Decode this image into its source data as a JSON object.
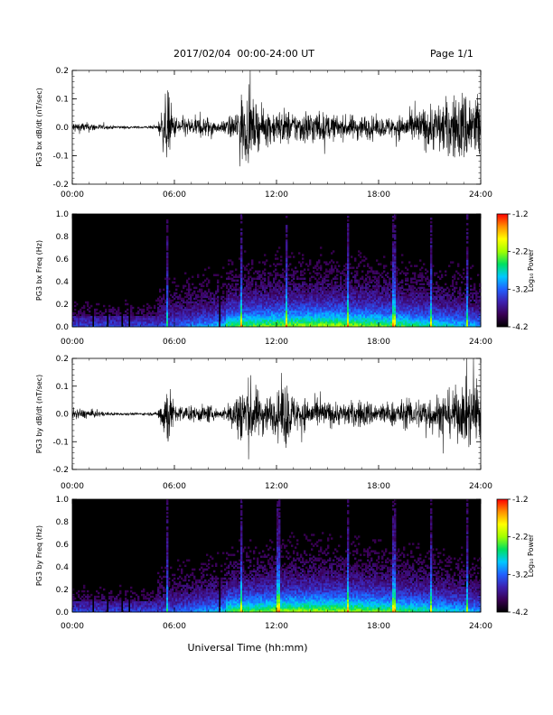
{
  "header": {
    "date_range": "2017/02/04  00:00-24:00 UT",
    "page_label": "Page 1/1"
  },
  "xaxis": {
    "label": "Universal Time (hh:mm)",
    "ticks": [
      "00:00",
      "06:00",
      "12:00",
      "18:00",
      "24:00"
    ],
    "range_hours": [
      0,
      24
    ]
  },
  "colors": {
    "background": "#ffffff",
    "trace": "#000000",
    "spectrogram_floor": "#000000",
    "colormap": [
      "#000000",
      "#3a0055",
      "#3d21b0",
      "#2060ff",
      "#00c8ff",
      "#00e060",
      "#a0ff00",
      "#ffff00",
      "#ff9000",
      "#ff0000"
    ]
  },
  "chart_data": [
    {
      "type": "line",
      "panel": "bx-timeseries",
      "ylabel": "PG3 bx dB/dt (nT/sec)",
      "ylim": [
        -0.2,
        0.2
      ],
      "yticks": [
        "-0.2",
        "-0.1",
        "0.0",
        "0.1",
        "0.2"
      ],
      "x_hours": [
        0,
        1,
        2,
        3,
        4,
        5,
        5.6,
        6,
        7,
        8,
        8.7,
        9,
        9.5,
        10,
        10.5,
        11,
        12,
        12.5,
        13,
        14,
        15,
        16,
        17,
        18,
        19,
        20,
        21,
        22,
        23,
        23.5,
        24
      ],
      "envelope": [
        0.03,
        0.025,
        0.01,
        0.008,
        0.006,
        0.01,
        0.2,
        0.06,
        0.05,
        0.06,
        0.02,
        0.05,
        0.06,
        0.2,
        0.15,
        0.1,
        0.09,
        0.1,
        0.08,
        0.1,
        0.07,
        0.06,
        0.07,
        0.05,
        0.06,
        0.08,
        0.12,
        0.15,
        0.2,
        0.2,
        0.2
      ]
    },
    {
      "type": "heatmap",
      "panel": "bx-spectrogram",
      "ylabel": "PG3 bx Freq (Hz)",
      "ylim": [
        0.0,
        1.0
      ],
      "yticks": [
        "0.0",
        "0.2",
        "0.4",
        "0.6",
        "0.8",
        "1.0"
      ],
      "colorbar": {
        "label": "Log₁₀ Power",
        "ticks": [
          "-1.2",
          "-2.2",
          "-3.2",
          "-4.2"
        ],
        "range": [
          -4.2,
          -1.2
        ]
      },
      "dark_gaps_hours": [
        1.2,
        2.1,
        2.9,
        3.3,
        8.7
      ],
      "bright_lines_hours": [
        5.6,
        9.9,
        12.6,
        16.2,
        18.9,
        21.1,
        23.2
      ]
    },
    {
      "type": "line",
      "panel": "by-timeseries",
      "ylabel": "PG3 by dB/dt (nT/sec)",
      "ylim": [
        -0.2,
        0.2
      ],
      "yticks": [
        "-0.2",
        "-0.1",
        "0.0",
        "0.1",
        "0.2"
      ],
      "x_hours": [
        0,
        1,
        2,
        3,
        4,
        5,
        5.6,
        6,
        7,
        8,
        8.7,
        9,
        9.5,
        10,
        10.5,
        11,
        12,
        12.5,
        13,
        14,
        15,
        16,
        17,
        18,
        19,
        20,
        21,
        22,
        23,
        23.5,
        24
      ],
      "envelope": [
        0.03,
        0.025,
        0.01,
        0.008,
        0.006,
        0.01,
        0.2,
        0.05,
        0.04,
        0.05,
        0.02,
        0.04,
        0.1,
        0.2,
        0.18,
        0.12,
        0.1,
        0.2,
        0.1,
        0.08,
        0.07,
        0.06,
        0.08,
        0.06,
        0.07,
        0.08,
        0.1,
        0.12,
        0.15,
        0.2,
        0.2
      ]
    },
    {
      "type": "heatmap",
      "panel": "by-spectrogram",
      "ylabel": "PG3 by Freq (Hz)",
      "ylim": [
        0.0,
        1.0
      ],
      "yticks": [
        "0.0",
        "0.2",
        "0.4",
        "0.6",
        "0.8",
        "1.0"
      ],
      "colorbar": {
        "label": "Log₁₀ Power",
        "ticks": [
          "-1.2",
          "-2.2",
          "-3.2",
          "-4.2"
        ],
        "range": [
          -4.2,
          -1.2
        ]
      },
      "dark_gaps_hours": [
        1.2,
        2.1,
        2.9,
        3.3,
        8.7
      ],
      "bright_lines_hours": [
        5.6,
        9.9,
        12.1,
        16.2,
        18.9,
        21.1,
        23.2
      ]
    }
  ]
}
